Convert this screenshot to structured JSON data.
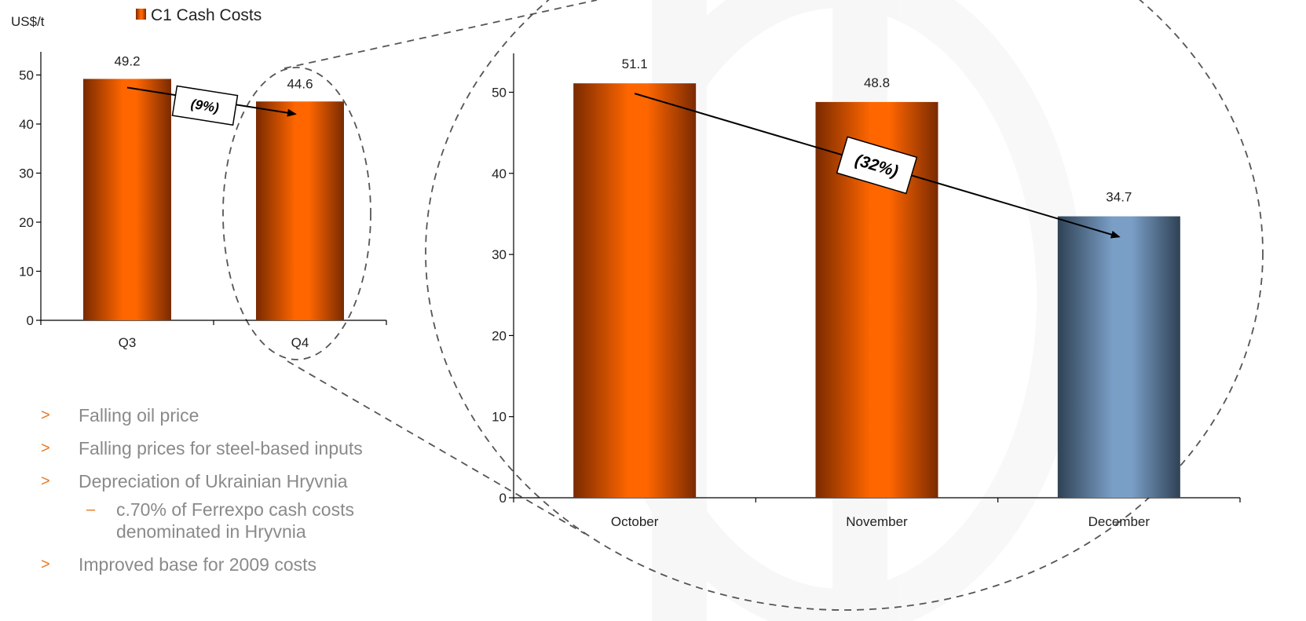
{
  "legend": {
    "label": "C1 Cash Costs",
    "color": "#ff6600"
  },
  "bullets": [
    {
      "text": "Falling oil price",
      "level": 1,
      "marker": ">"
    },
    {
      "text": "Falling prices for steel-based inputs",
      "level": 1,
      "marker": ">"
    },
    {
      "text": "Depreciation of Ukrainian Hryvnia",
      "level": 1,
      "marker": ">"
    },
    {
      "text": "c.70% of Ferrexpo cash costs denominated in Hryvnia",
      "level": 2,
      "marker": "–"
    },
    {
      "text": "Improved base for 2009 costs",
      "level": 1,
      "marker": ">"
    }
  ],
  "colors": {
    "orange": "#ff6600",
    "orange_dark": "#7a2a00",
    "blue": "#7a9fc7",
    "blue_dark": "#2f4255",
    "bullet_marker": "#e87722",
    "bullet_text": "#8a8a8a"
  },
  "chart_data": [
    {
      "type": "bar",
      "ylabel": "US$/t",
      "categories": [
        "Q3",
        "Q4"
      ],
      "values": [
        49.2,
        44.6
      ],
      "data_labels": [
        "49.2",
        "44.6"
      ],
      "ylim": [
        0,
        55
      ],
      "yticks": [
        0,
        10,
        20,
        30,
        40,
        50
      ],
      "change_annotation": {
        "text": "(9%)",
        "from": "Q3",
        "to": "Q4"
      },
      "highlighted_category": "Q4",
      "grid": false
    },
    {
      "type": "bar",
      "categories": [
        "October",
        "November",
        "December"
      ],
      "values": [
        51.1,
        48.8,
        34.7
      ],
      "data_labels": [
        "51.1",
        "48.8",
        "34.7"
      ],
      "bar_colors": [
        "orange",
        "orange",
        "blue"
      ],
      "ylim": [
        0,
        55
      ],
      "yticks": [
        0,
        10,
        20,
        30,
        40,
        50
      ],
      "change_annotation": {
        "text": "(32%)",
        "from": "October",
        "to": "December"
      },
      "grid": false
    }
  ]
}
